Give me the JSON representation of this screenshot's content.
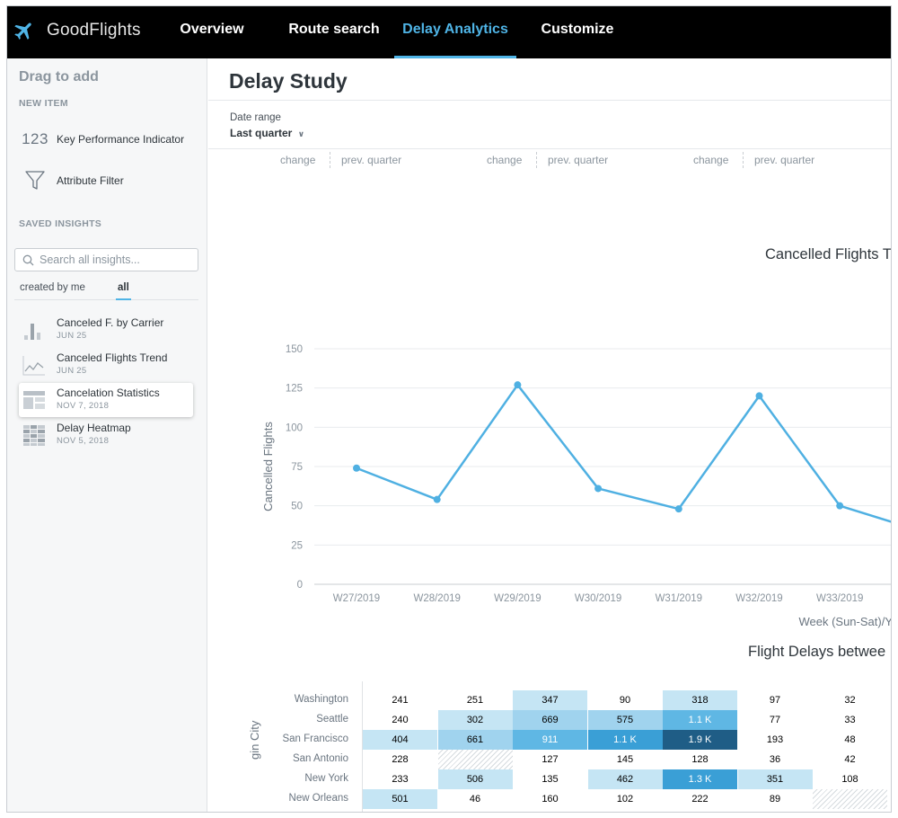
{
  "app": {
    "name": "GoodFlights"
  },
  "nav": {
    "items": [
      {
        "label": "Overview"
      },
      {
        "label": "Route search"
      },
      {
        "label": "Delay Analytics"
      },
      {
        "label": "Customize"
      }
    ],
    "active": "Delay Analytics"
  },
  "sidebar": {
    "title": "Drag to add",
    "new_item_header": "NEW ITEM",
    "new_items": [
      {
        "icon": "kpi-icon",
        "icon_text": "123",
        "label": "Key Performance Indicator"
      },
      {
        "icon": "filter-funnel-icon",
        "label": "Attribute Filter"
      }
    ],
    "saved_header": "SAVED INSIGHTS",
    "search_placeholder": "Search all insights...",
    "tabs": [
      {
        "label": "created by me"
      },
      {
        "label": "all"
      }
    ],
    "active_tab": "all",
    "insights": [
      {
        "name": "Canceled F. by Carrier",
        "date": "JUN 25",
        "icon": "bar-chart-icon"
      },
      {
        "name": "Canceled Flights Trend",
        "date": "JUN 25",
        "icon": "line-chart-icon"
      },
      {
        "name": "Cancelation Statistics",
        "date": "NOV 7, 2018",
        "icon": "table-icon"
      },
      {
        "name": "Delay Heatmap",
        "date": "NOV 5, 2018",
        "icon": "heatmap-icon"
      }
    ],
    "highlighted_insight": "Cancelation Statistics"
  },
  "main": {
    "title": "Delay Study",
    "date_range_label": "Date range",
    "date_range_value": "Last quarter",
    "kpi_headers": [
      {
        "change": "change",
        "prev": "prev. quarter"
      },
      {
        "change": "change",
        "prev": "prev. quarter"
      },
      {
        "change": "change",
        "prev": "prev. quarter"
      }
    ]
  },
  "chart_data": [
    {
      "type": "line",
      "title": "Cancelled Flights T",
      "xlabel": "Week (Sun-Sat)/Y",
      "ylabel": "Cancelled Flights",
      "categories": [
        "W27/2019",
        "W28/2019",
        "W29/2019",
        "W30/2019",
        "W31/2019",
        "W32/2019",
        "W33/2019"
      ],
      "series": [
        {
          "values": [
            74,
            54,
            127,
            61,
            48,
            120,
            50
          ]
        }
      ],
      "trailing_value": 34,
      "y_ticks": [
        0,
        25,
        50,
        75,
        100,
        125,
        150
      ],
      "ylim": [
        0,
        150
      ],
      "grid": true,
      "color": "#4fb0e2"
    },
    {
      "type": "heatmap",
      "title": "Flight Delays betwee",
      "ylabel": "gin City",
      "rows": [
        {
          "label": "Washington",
          "cells": [
            "241",
            "251",
            "347",
            "90",
            "318",
            "97",
            "32"
          ]
        },
        {
          "label": "Seattle",
          "cells": [
            "240",
            "302",
            "669",
            "575",
            "1.1 K",
            "77",
            "33"
          ]
        },
        {
          "label": "San Francisco",
          "cells": [
            "404",
            "661",
            "911",
            "1.1 K",
            "1.9 K",
            "193",
            "48"
          ]
        },
        {
          "label": "San Antonio",
          "cells": [
            "228",
            "",
            "127",
            "145",
            "128",
            "36",
            "42"
          ]
        },
        {
          "label": "New York",
          "cells": [
            "233",
            "506",
            "135",
            "462",
            "1.3 K",
            "351",
            "108"
          ]
        },
        {
          "label": "New Orleans",
          "cells": [
            "501",
            "46",
            "160",
            "102",
            "222",
            "89",
            ""
          ]
        }
      ],
      "cell_fill": [
        [
          "#ffffff",
          "#ffffff",
          "#c5e5f4",
          "#ffffff",
          "#c5e5f4",
          "#ffffff",
          "#ffffff"
        ],
        [
          "#ffffff",
          "#c5e5f4",
          "#a0d3ee",
          "#a0d3ee",
          "#5fb7e4",
          "#ffffff",
          "#ffffff"
        ],
        [
          "#c5e5f4",
          "#a0d3ee",
          "#5fb7e4",
          "#3a9fd6",
          "#1f5d86",
          "#ffffff",
          "#ffffff"
        ],
        [
          "#ffffff",
          "hatched",
          "#ffffff",
          "#ffffff",
          "#ffffff",
          "#ffffff",
          "#ffffff"
        ],
        [
          "#ffffff",
          "#c5e5f4",
          "#ffffff",
          "#c5e5f4",
          "#3a9fd6",
          "#c5e5f4",
          "#ffffff"
        ],
        [
          "#c5e5f4",
          "#ffffff",
          "#ffffff",
          "#ffffff",
          "#ffffff",
          "#ffffff",
          "hatched"
        ]
      ]
    }
  ]
}
